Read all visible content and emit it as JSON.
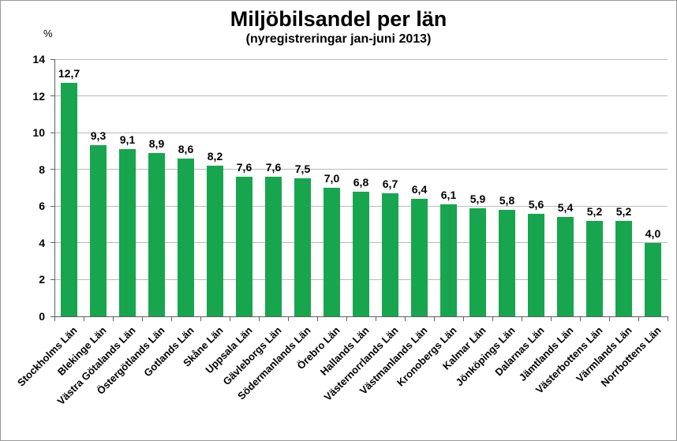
{
  "chart_data": {
    "type": "bar",
    "title": "Miljöbilsandel per län",
    "subtitle": "(nyregistreringar jan-juni 2013)",
    "xlabel": "",
    "ylabel": "%",
    "ylim": [
      0,
      14
    ],
    "yticks": [
      0,
      2,
      4,
      6,
      8,
      10,
      12,
      14
    ],
    "grid": true,
    "legend_position": "none",
    "bar_color": "#17a64e",
    "gridline_color": "#b9b9b9",
    "axis_color": "#5f5f5f",
    "categories": [
      "Stockholms Län",
      "Blekinge Län",
      "Västra Götalands Län",
      "Östergötlands Län",
      "Gotlands Län",
      "Skåne Län",
      "Uppsala Län",
      "Gävleborgs Län",
      "Södermanlands Län",
      "Örebro Län",
      "Hallands Län",
      "Västernorrlands Län",
      "Västmanlands Län",
      "Kronobergs Län",
      "Kalmar Län",
      "Jönköpings Län",
      "Dalarnas Län",
      "Jämtlands Län",
      "Västerbottens Län",
      "Värmlands Län",
      "Norrbottens Län"
    ],
    "values": [
      12.7,
      9.3,
      9.1,
      8.9,
      8.6,
      8.2,
      7.6,
      7.6,
      7.5,
      7.0,
      6.8,
      6.7,
      6.4,
      6.1,
      5.9,
      5.8,
      5.6,
      5.4,
      5.2,
      5.2,
      4.0
    ],
    "value_labels": [
      "12,7",
      "9,3",
      "9,1",
      "8,9",
      "8,6",
      "8,2",
      "7,6",
      "7,6",
      "7,5",
      "7,0",
      "6,8",
      "6,7",
      "6,4",
      "6,1",
      "5,9",
      "5,8",
      "5,6",
      "5,4",
      "5,2",
      "5,2",
      "4,0"
    ]
  }
}
